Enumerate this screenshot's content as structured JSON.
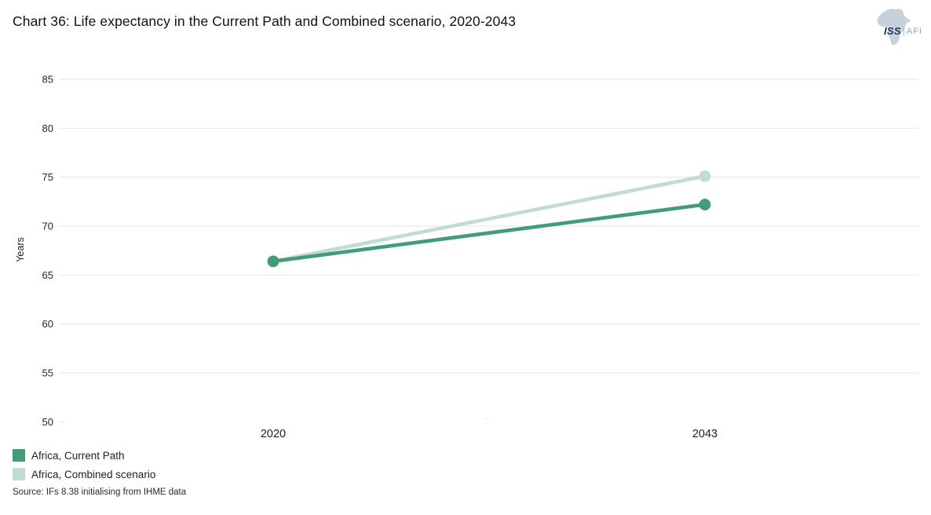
{
  "title": "Chart 36: Life expectancy in the Current Path and Combined scenario, 2020-2043",
  "logo": {
    "iss": "ISS",
    "afi": "AFI",
    "africa_color": "#c8d1da",
    "iss_color": "#16365c",
    "afi_color": "#8ba6c6"
  },
  "source": "Source: IFs 8.38 initialising from IHME data",
  "chart_data": {
    "type": "line",
    "x": [
      2020,
      2043
    ],
    "xtick_labels": [
      "2020",
      "2043"
    ],
    "series": [
      {
        "name": "Africa, Current Path",
        "color": "#429c76",
        "values": [
          66.4,
          72.2
        ]
      },
      {
        "name": "Africa, Combined scenario",
        "color": "#c0ddcf",
        "values": [
          66.4,
          75.1
        ]
      }
    ],
    "ylabel": "Years",
    "yticks": [
      85,
      80,
      75,
      70,
      65,
      60,
      55,
      50
    ],
    "ylim": [
      50,
      87.5
    ],
    "grid": true,
    "gridline_color": "#e9e9ed",
    "tick_label_color": "#262626",
    "legend_position": "bottom-left"
  }
}
